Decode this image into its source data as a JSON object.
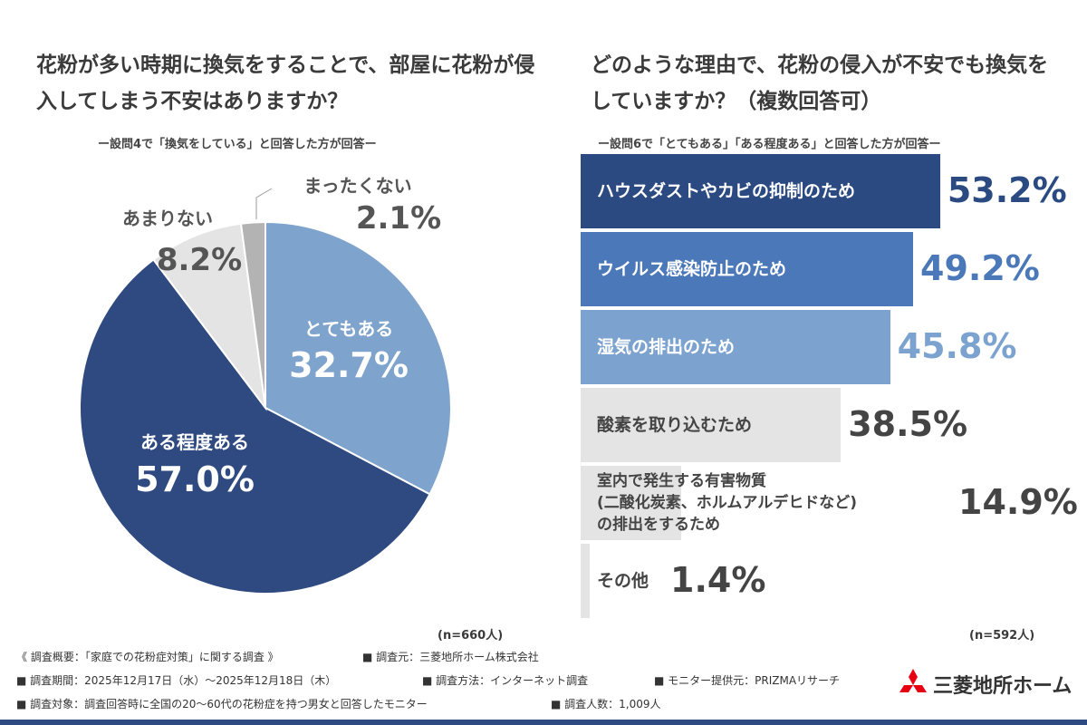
{
  "chart_data": [
    {
      "type": "pie",
      "title": "花粉が多い時期に換気をすることで、部屋に花粉が侵入してしまう不安はありますか？",
      "subtitle": "ー設問4で「換気をしている」と回答した方が回答ー",
      "n": "(n=660人)",
      "slices": [
        {
          "label": "とてもある",
          "value": 32.7,
          "display": "32.7%",
          "color": "#7ea3cc"
        },
        {
          "label": "ある程度ある",
          "value": 57.0,
          "display": "57.0%",
          "color": "#2e4a80"
        },
        {
          "label": "あまりない",
          "value": 8.2,
          "display": "8.2%",
          "color": "#e4e4e4"
        },
        {
          "label": "まったくない",
          "value": 2.1,
          "display": "2.1%",
          "color": "#b3b3b3"
        }
      ]
    },
    {
      "type": "bar",
      "orientation": "horizontal",
      "title": "どのような理由で、花粉の侵入が不安でも換気をしていますか？（複数回答可）",
      "subtitle": "ー設問6で「とてもある」「ある程度ある」と回答した方が回答ー",
      "n": "(n=592人)",
      "categories": [
        "ハウスダストやカビの抑制のため",
        "ウイルス感染防止のため",
        "湿気の排出のため",
        "酸素を取り込むため",
        "室内で発生する有害物質\n(二酸化炭素、ホルムアルデヒドなど)\nの排出をするため",
        "その他"
      ],
      "values": [
        53.2,
        49.2,
        45.8,
        38.5,
        14.9,
        1.4
      ],
      "display": [
        "53.2%",
        "49.2%",
        "45.8%",
        "38.5%",
        "14.9%",
        "1.4%"
      ],
      "colors": [
        "#2b4a82",
        "#4a78b8",
        "#7ca3cf",
        "#e4e4e4",
        "#e4e4e4",
        "#e4e4e4"
      ]
    }
  ],
  "footer": {
    "lines": [
      "《 調査概要：「家庭での花粉症対策」に関する調査 》",
      "■ 調査元：三菱地所ホーム株式会社",
      "■ 調査期間：2025年12月17日（水）～2025年12月18日（木）",
      "■ 調査方法：インターネット調査",
      "■ モニター提供元：PRIZMAリサーチ",
      "■ 調査対象：調査回答時に全国の20～60代の花粉症を持つ男女と回答したモニター",
      "■ 調査人数：1,009人"
    ],
    "logo": "三菱地所ホーム"
  }
}
